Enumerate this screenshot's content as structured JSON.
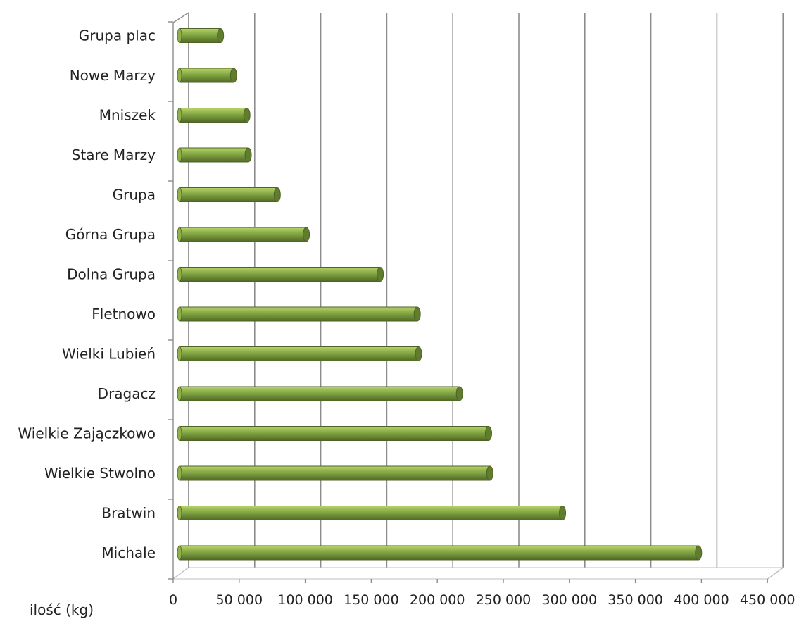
{
  "chart_data": {
    "type": "bar",
    "orientation": "horizontal",
    "categories": [
      "Michale",
      "Bratwin",
      "Wielkie Stwolno",
      "Wielkie Zajączkowo",
      "Dragacz",
      "Wielki Lubień",
      "Fletnowo",
      "Dolna Grupa",
      "Górna Grupa",
      "Grupa",
      "Stare Marzy",
      "Mniszek",
      "Nowe Marzy",
      "Grupa plac"
    ],
    "values": [
      393000,
      290000,
      235000,
      234000,
      212000,
      181000,
      180000,
      152000,
      96000,
      74000,
      52000,
      51000,
      41000,
      31000
    ],
    "xlabel": "ilość (kg)",
    "xlim": [
      0,
      450000
    ],
    "xticks": [
      "0",
      "50 000",
      "100 000",
      "150 000",
      "200 000",
      "250 000",
      "300 000",
      "350 000",
      "400 000",
      "450 000"
    ],
    "grid": "vertical",
    "bar_color": "#77933c",
    "bar_top_color": "#a6c65a",
    "bar_shadow_color": "#4f6228",
    "gridline_color": "#8c8c8c",
    "floor_color": "#bfbfbf"
  }
}
